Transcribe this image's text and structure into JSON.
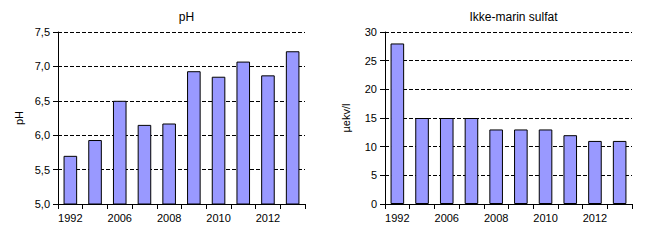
{
  "chart_data": [
    {
      "type": "bar",
      "title": "pH",
      "ylabel": "pH",
      "categories": [
        "1992",
        null,
        "2006",
        null,
        "2008",
        null,
        "2010",
        null,
        "2012",
        null
      ],
      "values": [
        5.7,
        5.93,
        6.5,
        6.15,
        6.17,
        6.93,
        6.85,
        7.07,
        6.87,
        7.22
      ],
      "color": "#9999ff",
      "ylim": [
        5,
        7.5
      ],
      "yticks": [
        {
          "value": 5,
          "label": "5,0"
        },
        {
          "value": 5.5,
          "label": "5,5"
        },
        {
          "value": 6,
          "label": "6,0"
        },
        {
          "value": 6.5,
          "label": "6,5"
        },
        {
          "value": 7,
          "label": "7,0"
        },
        {
          "value": 7.5,
          "label": "7,5"
        }
      ],
      "grid": true
    },
    {
      "type": "bar",
      "title": "Ikke-marin sulfat",
      "ylabel": "µekv/l",
      "categories": [
        "1992",
        null,
        "2006",
        null,
        "2008",
        null,
        "2010",
        null,
        "2012",
        null
      ],
      "values": [
        28,
        15,
        15,
        15,
        13,
        13,
        13,
        12,
        11,
        11
      ],
      "color": "#9999ff",
      "ylim": [
        0,
        30
      ],
      "yticks": [
        0,
        5,
        10,
        15,
        20,
        25,
        30
      ],
      "grid": true
    }
  ]
}
